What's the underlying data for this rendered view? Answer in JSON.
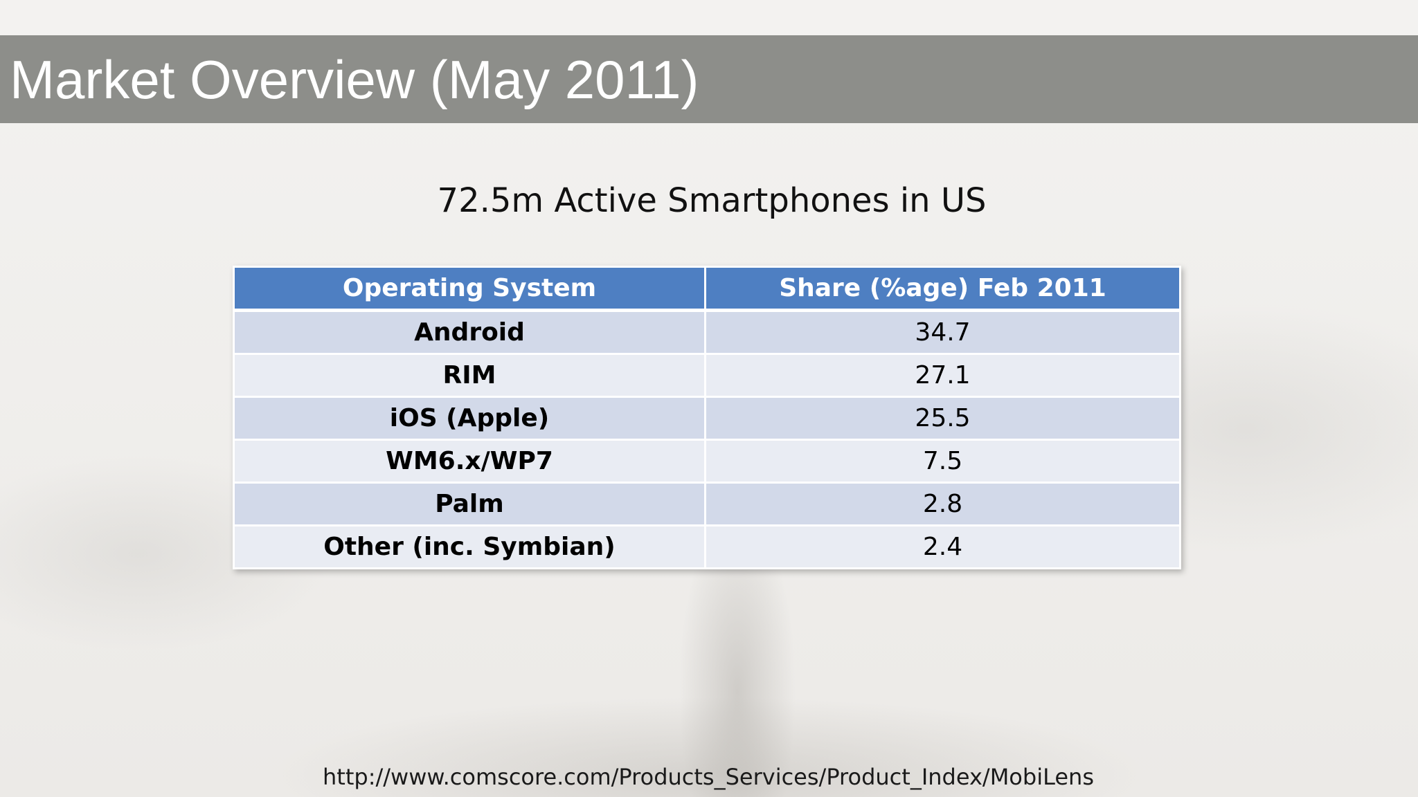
{
  "slide": {
    "title": "Market Overview (May 2011)",
    "subtitle": "72.5m Active Smartphones in US",
    "source_url": "http://www.comscore.com/Products_Services/Product_Index/MobiLens"
  },
  "table": {
    "headers": [
      "Operating System",
      "Share (%age) Feb 2011"
    ],
    "rows": [
      {
        "os": "Android",
        "share": "34.7"
      },
      {
        "os": "RIM",
        "share": "27.1"
      },
      {
        "os": "iOS (Apple)",
        "share": "25.5"
      },
      {
        "os": "WM6.x/WP7",
        "share": "7.5"
      },
      {
        "os": "Palm",
        "share": "2.8"
      },
      {
        "os": "Other (inc. Symbian)",
        "share": "2.4"
      }
    ]
  },
  "colors": {
    "title_bar": "#8d8e8a",
    "table_header": "#4e7fc2",
    "row_odd": "#d2d9e9",
    "row_even": "#e9ecf3"
  }
}
